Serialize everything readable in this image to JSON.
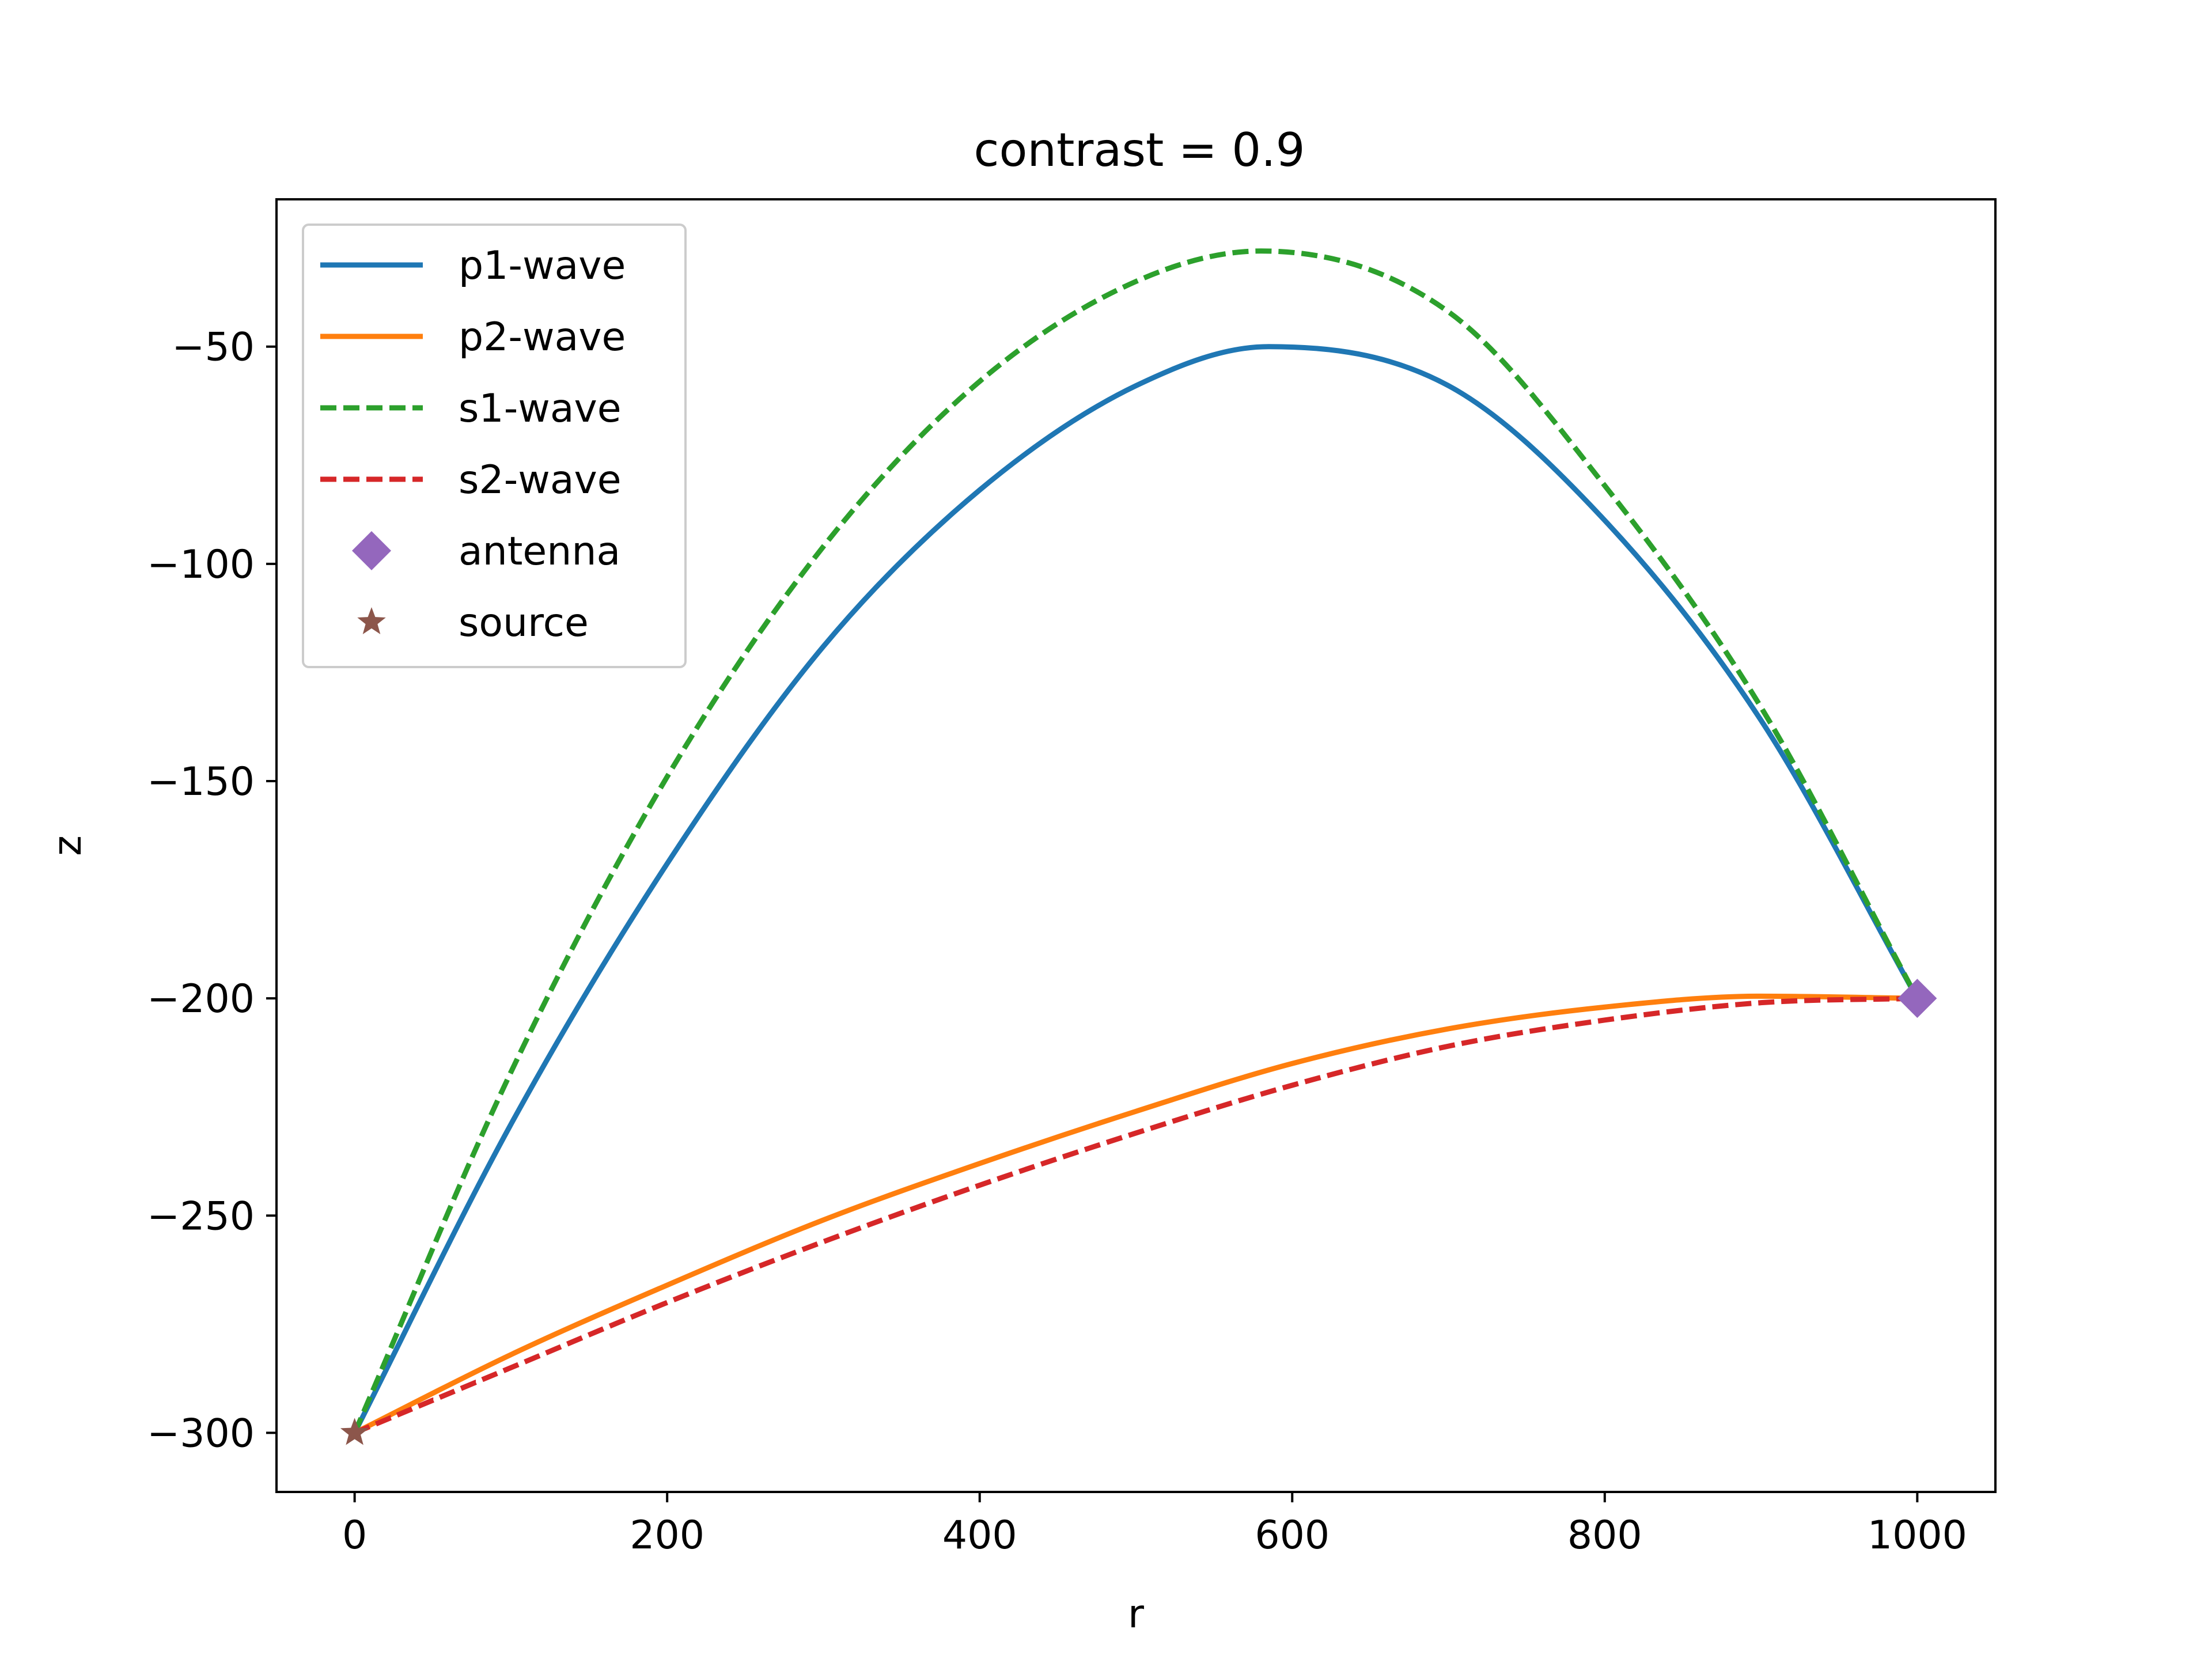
{
  "chart_data": {
    "type": "line",
    "title": "contrast = 0.9",
    "xlabel": "r",
    "ylabel": "z",
    "xlim": [
      -50,
      1050
    ],
    "ylim": [
      -313.6,
      -16.1
    ],
    "xticks": [
      0,
      200,
      400,
      600,
      800,
      1000
    ],
    "yticks": [
      -300,
      -250,
      -200,
      -150,
      -100,
      -50
    ],
    "xtick_labels": [
      "0",
      "200",
      "400",
      "600",
      "800",
      "1000"
    ],
    "ytick_labels": [
      "−300",
      "−250",
      "−200",
      "−150",
      "−100",
      "−50"
    ],
    "grid": false,
    "legend_placement": "upper left",
    "series": [
      {
        "name": "p1-wave",
        "style": "solid",
        "color": "#1f77b4",
        "x": [
          0,
          100,
          200,
          300,
          400,
          500,
          585,
          700,
          800,
          900,
          1000
        ],
        "y": [
          -300,
          -229,
          -169,
          -119,
          -83,
          -59,
          -50,
          -59,
          -90,
          -136,
          -200
        ]
      },
      {
        "name": "p2-wave",
        "style": "solid",
        "color": "#ff7f0e",
        "x": [
          0,
          100,
          200,
          300,
          400,
          500,
          600,
          700,
          800,
          900,
          1000
        ],
        "y": [
          -300,
          -282,
          -266,
          -251,
          -238,
          -226,
          -215,
          -207,
          -202,
          -199.5,
          -200
        ]
      },
      {
        "name": "s1-wave",
        "style": "dashed",
        "color": "#2ca02c",
        "x": [
          0,
          100,
          200,
          300,
          400,
          500,
          580,
          700,
          800,
          900,
          1000
        ],
        "y": [
          -300,
          -217,
          -149,
          -96,
          -58,
          -35,
          -28,
          -42,
          -82,
          -133,
          -200
        ]
      },
      {
        "name": "s2-wave",
        "style": "dashed",
        "color": "#d62728",
        "x": [
          0,
          100,
          200,
          300,
          400,
          500,
          600,
          700,
          800,
          900,
          1000
        ],
        "y": [
          -300,
          -285,
          -270,
          -256,
          -243,
          -231,
          -220,
          -211,
          -205,
          -201,
          -200
        ]
      }
    ],
    "markers": [
      {
        "name": "antenna",
        "shape": "diamond",
        "color": "#9467bd",
        "x": 1000,
        "y": -200
      },
      {
        "name": "source",
        "shape": "star",
        "color": "#8c564b",
        "x": 0,
        "y": -300
      }
    ]
  }
}
